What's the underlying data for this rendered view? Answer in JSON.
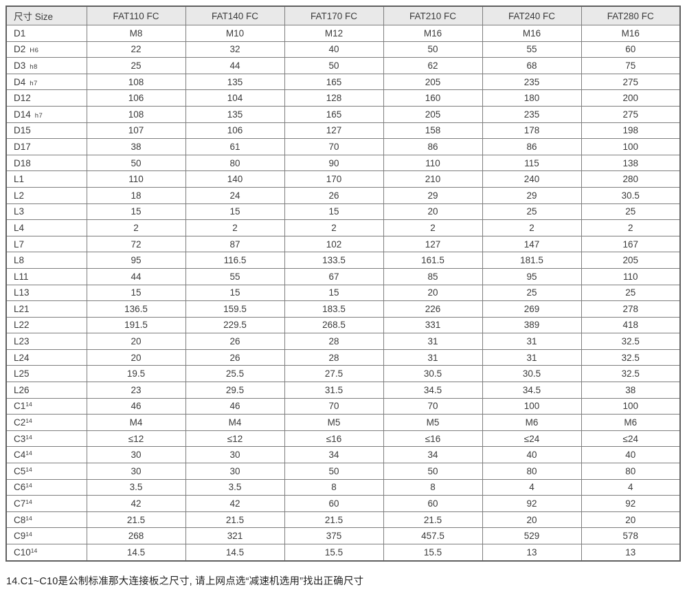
{
  "colors": {
    "header_bg": "#e9e9e9",
    "border": "#7d7d7d",
    "outer_border": "#5f5f5f",
    "text": "#3a3a3a"
  },
  "table": {
    "columns": [
      "尺寸 Size",
      "FAT110 FC",
      "FAT140 FC",
      "FAT170 FC",
      "FAT210 FC",
      "FAT240 FC",
      "FAT280 FC"
    ],
    "rows": [
      {
        "label": "D1",
        "sub": "",
        "sup": "",
        "values": [
          "M8",
          "M10",
          "M12",
          "M16",
          "M16",
          "M16"
        ]
      },
      {
        "label": "D2",
        "sub": "H6",
        "sup": "",
        "values": [
          "22",
          "32",
          "40",
          "50",
          "55",
          "60"
        ]
      },
      {
        "label": "D3",
        "sub": "h8",
        "sup": "",
        "values": [
          "25",
          "44",
          "50",
          "62",
          "68",
          "75"
        ]
      },
      {
        "label": "D4",
        "sub": "h7",
        "sup": "",
        "values": [
          "108",
          "135",
          "165",
          "205",
          "235",
          "275"
        ]
      },
      {
        "label": "D12",
        "sub": "",
        "sup": "",
        "values": [
          "106",
          "104",
          "128",
          "160",
          "180",
          "200"
        ]
      },
      {
        "label": "D14",
        "sub": "h7",
        "sup": "",
        "values": [
          "108",
          "135",
          "165",
          "205",
          "235",
          "275"
        ]
      },
      {
        "label": "D15",
        "sub": "",
        "sup": "",
        "values": [
          "107",
          "106",
          "127",
          "158",
          "178",
          "198"
        ]
      },
      {
        "label": "D17",
        "sub": "",
        "sup": "",
        "values": [
          "38",
          "61",
          "70",
          "86",
          "86",
          "100"
        ]
      },
      {
        "label": "D18",
        "sub": "",
        "sup": "",
        "values": [
          "50",
          "80",
          "90",
          "110",
          "115",
          "138"
        ]
      },
      {
        "label": "L1",
        "sub": "",
        "sup": "",
        "values": [
          "110",
          "140",
          "170",
          "210",
          "240",
          "280"
        ]
      },
      {
        "label": "L2",
        "sub": "",
        "sup": "",
        "values": [
          "18",
          "24",
          "26",
          "29",
          "29",
          "30.5"
        ]
      },
      {
        "label": "L3",
        "sub": "",
        "sup": "",
        "values": [
          "15",
          "15",
          "15",
          "20",
          "25",
          "25"
        ]
      },
      {
        "label": "L4",
        "sub": "",
        "sup": "",
        "values": [
          "2",
          "2",
          "2",
          "2",
          "2",
          "2"
        ]
      },
      {
        "label": "L7",
        "sub": "",
        "sup": "",
        "values": [
          "72",
          "87",
          "102",
          "127",
          "147",
          "167"
        ]
      },
      {
        "label": "L8",
        "sub": "",
        "sup": "",
        "values": [
          "95",
          "116.5",
          "133.5",
          "161.5",
          "181.5",
          "205"
        ]
      },
      {
        "label": "L11",
        "sub": "",
        "sup": "",
        "values": [
          "44",
          "55",
          "67",
          "85",
          "95",
          "110"
        ]
      },
      {
        "label": "L13",
        "sub": "",
        "sup": "",
        "values": [
          "15",
          "15",
          "15",
          "20",
          "25",
          "25"
        ]
      },
      {
        "label": "L21",
        "sub": "",
        "sup": "",
        "values": [
          "136.5",
          "159.5",
          "183.5",
          "226",
          "269",
          "278"
        ]
      },
      {
        "label": "L22",
        "sub": "",
        "sup": "",
        "values": [
          "191.5",
          "229.5",
          "268.5",
          "331",
          "389",
          "418"
        ]
      },
      {
        "label": "L23",
        "sub": "",
        "sup": "",
        "values": [
          "20",
          "26",
          "28",
          "31",
          "31",
          "32.5"
        ]
      },
      {
        "label": "L24",
        "sub": "",
        "sup": "",
        "values": [
          "20",
          "26",
          "28",
          "31",
          "31",
          "32.5"
        ]
      },
      {
        "label": "L25",
        "sub": "",
        "sup": "",
        "values": [
          "19.5",
          "25.5",
          "27.5",
          "30.5",
          "30.5",
          "32.5"
        ]
      },
      {
        "label": "L26",
        "sub": "",
        "sup": "",
        "values": [
          "23",
          "29.5",
          "31.5",
          "34.5",
          "34.5",
          "38"
        ]
      },
      {
        "label": "C1",
        "sub": "",
        "sup": "14",
        "values": [
          "46",
          "46",
          "70",
          "70",
          "100",
          "100"
        ]
      },
      {
        "label": "C2",
        "sub": "",
        "sup": "14",
        "values": [
          "M4",
          "M4",
          "M5",
          "M5",
          "M6",
          "M6"
        ]
      },
      {
        "label": "C3",
        "sub": "",
        "sup": "14",
        "values": [
          "≤12",
          "≤12",
          "≤16",
          "≤16",
          "≤24",
          "≤24"
        ]
      },
      {
        "label": "C4",
        "sub": "",
        "sup": "14",
        "values": [
          "30",
          "30",
          "34",
          "34",
          "40",
          "40"
        ]
      },
      {
        "label": "C5",
        "sub": "",
        "sup": "14",
        "values": [
          "30",
          "30",
          "50",
          "50",
          "80",
          "80"
        ]
      },
      {
        "label": "C6",
        "sub": "",
        "sup": "14",
        "values": [
          "3.5",
          "3.5",
          "8",
          "8",
          "4",
          "4"
        ]
      },
      {
        "label": "C7",
        "sub": "",
        "sup": "14",
        "values": [
          "42",
          "42",
          "60",
          "60",
          "92",
          "92"
        ]
      },
      {
        "label": "C8",
        "sub": "",
        "sup": "14",
        "values": [
          "21.5",
          "21.5",
          "21.5",
          "21.5",
          "20",
          "20"
        ]
      },
      {
        "label": "C9",
        "sub": "",
        "sup": "14",
        "values": [
          "268",
          "321",
          "375",
          "457.5",
          "529",
          "578"
        ]
      },
      {
        "label": "C10",
        "sub": "",
        "sup": "14",
        "values": [
          "14.5",
          "14.5",
          "15.5",
          "15.5",
          "13",
          "13"
        ]
      }
    ]
  },
  "footnote": "14.C1~C10是公制标准那大连接板之尺寸, 请上网点选“减速机选用”找出正确尺寸"
}
